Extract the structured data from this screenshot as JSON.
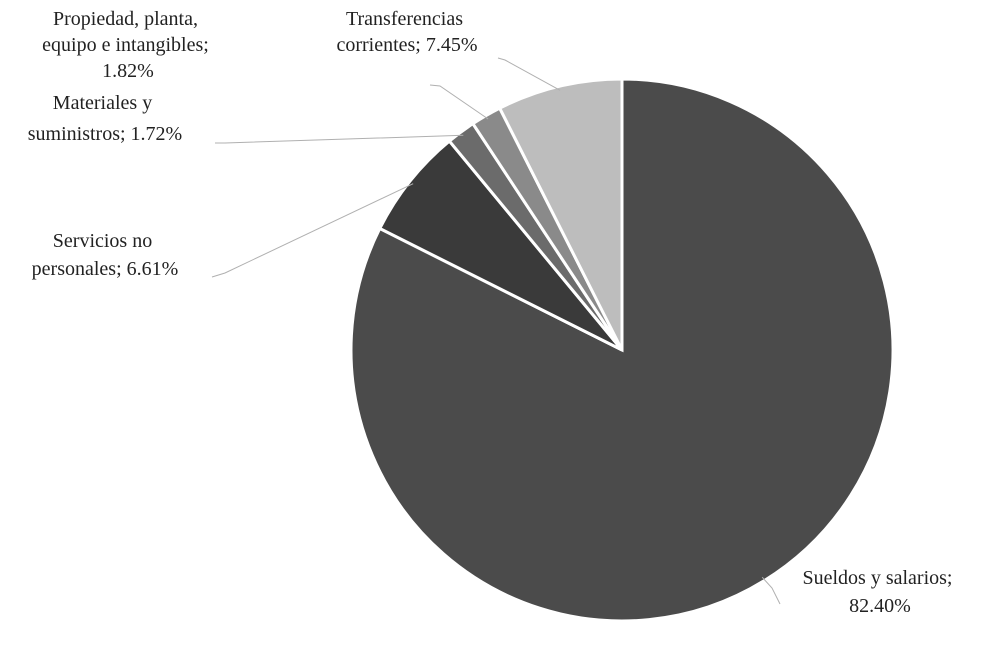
{
  "chart_data": {
    "type": "pie",
    "categories": [
      "Sueldos y salarios",
      "Servicios no personales",
      "Materiales y suministros",
      "Propiedad, planta, equipo e intangibles",
      "Transferencias corrientes"
    ],
    "values": [
      82.4,
      6.61,
      1.72,
      1.82,
      7.45
    ],
    "value_labels": [
      "Sueldos y salarios; 82.40%",
      "Servicios no personales; 6.61%",
      "Materiales y suministros; 1.72%",
      "Propiedad, planta, equipo e intangibles; 1.82%",
      "Transferencias corrientes; 7.45%"
    ],
    "colors": [
      "#4b4b4b",
      "#3a3a3a",
      "#6b6b6b",
      "#8a8a8a",
      "#bdbdbd"
    ]
  }
}
